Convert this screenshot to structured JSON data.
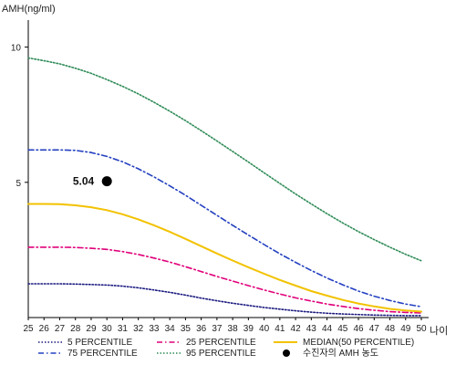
{
  "chart_data": {
    "type": "line",
    "ylabel": "AMH(ng/ml)",
    "xlabel": "나이",
    "x": [
      25,
      26,
      27,
      28,
      29,
      30,
      31,
      32,
      33,
      34,
      35,
      36,
      37,
      38,
      39,
      40,
      41,
      42,
      43,
      44,
      45,
      46,
      47,
      48,
      49,
      50
    ],
    "xlim": [
      25,
      50
    ],
    "ylim": [
      0,
      11
    ],
    "yticks": [
      5,
      10
    ],
    "grid": false,
    "legend_position": "bottom",
    "series": [
      {
        "name": "5 PERCENTILE",
        "color": "#1a1a80",
        "dash": "dot",
        "values": [
          1.25,
          1.25,
          1.25,
          1.24,
          1.22,
          1.2,
          1.16,
          1.1,
          1.02,
          0.93,
          0.83,
          0.72,
          0.62,
          0.53,
          0.45,
          0.37,
          0.31,
          0.25,
          0.2,
          0.16,
          0.13,
          0.11,
          0.09,
          0.08,
          0.07,
          0.07
        ]
      },
      {
        "name": "25 PERCENTILE",
        "color": "#e0007a",
        "dash": "dashdot",
        "values": [
          2.6,
          2.6,
          2.6,
          2.59,
          2.56,
          2.52,
          2.44,
          2.33,
          2.2,
          2.05,
          1.88,
          1.7,
          1.52,
          1.35,
          1.18,
          1.02,
          0.87,
          0.73,
          0.61,
          0.5,
          0.41,
          0.33,
          0.27,
          0.22,
          0.19,
          0.17
        ]
      },
      {
        "name": "MEDIAN(50 PERCENTILE)",
        "color": "#f2c200",
        "dash": "solid",
        "values": [
          4.2,
          4.2,
          4.19,
          4.15,
          4.08,
          3.97,
          3.82,
          3.63,
          3.41,
          3.17,
          2.91,
          2.64,
          2.37,
          2.11,
          1.86,
          1.62,
          1.39,
          1.18,
          0.98,
          0.81,
          0.65,
          0.52,
          0.41,
          0.32,
          0.26,
          0.22
        ]
      },
      {
        "name": "75 PERCENTILE",
        "color": "#2340c0",
        "dash": "dashdot",
        "values": [
          6.2,
          6.2,
          6.2,
          6.18,
          6.1,
          5.96,
          5.76,
          5.5,
          5.2,
          4.87,
          4.52,
          4.15,
          3.78,
          3.41,
          3.05,
          2.7,
          2.36,
          2.04,
          1.74,
          1.46,
          1.21,
          0.98,
          0.79,
          0.63,
          0.5,
          0.4
        ]
      },
      {
        "name": "95 PERCENTILE",
        "color": "#2e8b57",
        "dash": "dot",
        "values": [
          9.6,
          9.5,
          9.38,
          9.22,
          9.03,
          8.8,
          8.55,
          8.27,
          7.96,
          7.63,
          7.28,
          6.91,
          6.53,
          6.14,
          5.75,
          5.35,
          4.96,
          4.57,
          4.2,
          3.84,
          3.5,
          3.18,
          2.88,
          2.6,
          2.34,
          2.1
        ]
      }
    ],
    "marker": {
      "x": 30,
      "y": 5.04,
      "label": "5.04",
      "legend": "수진자의 AMH 농도",
      "color": "#000000"
    }
  }
}
